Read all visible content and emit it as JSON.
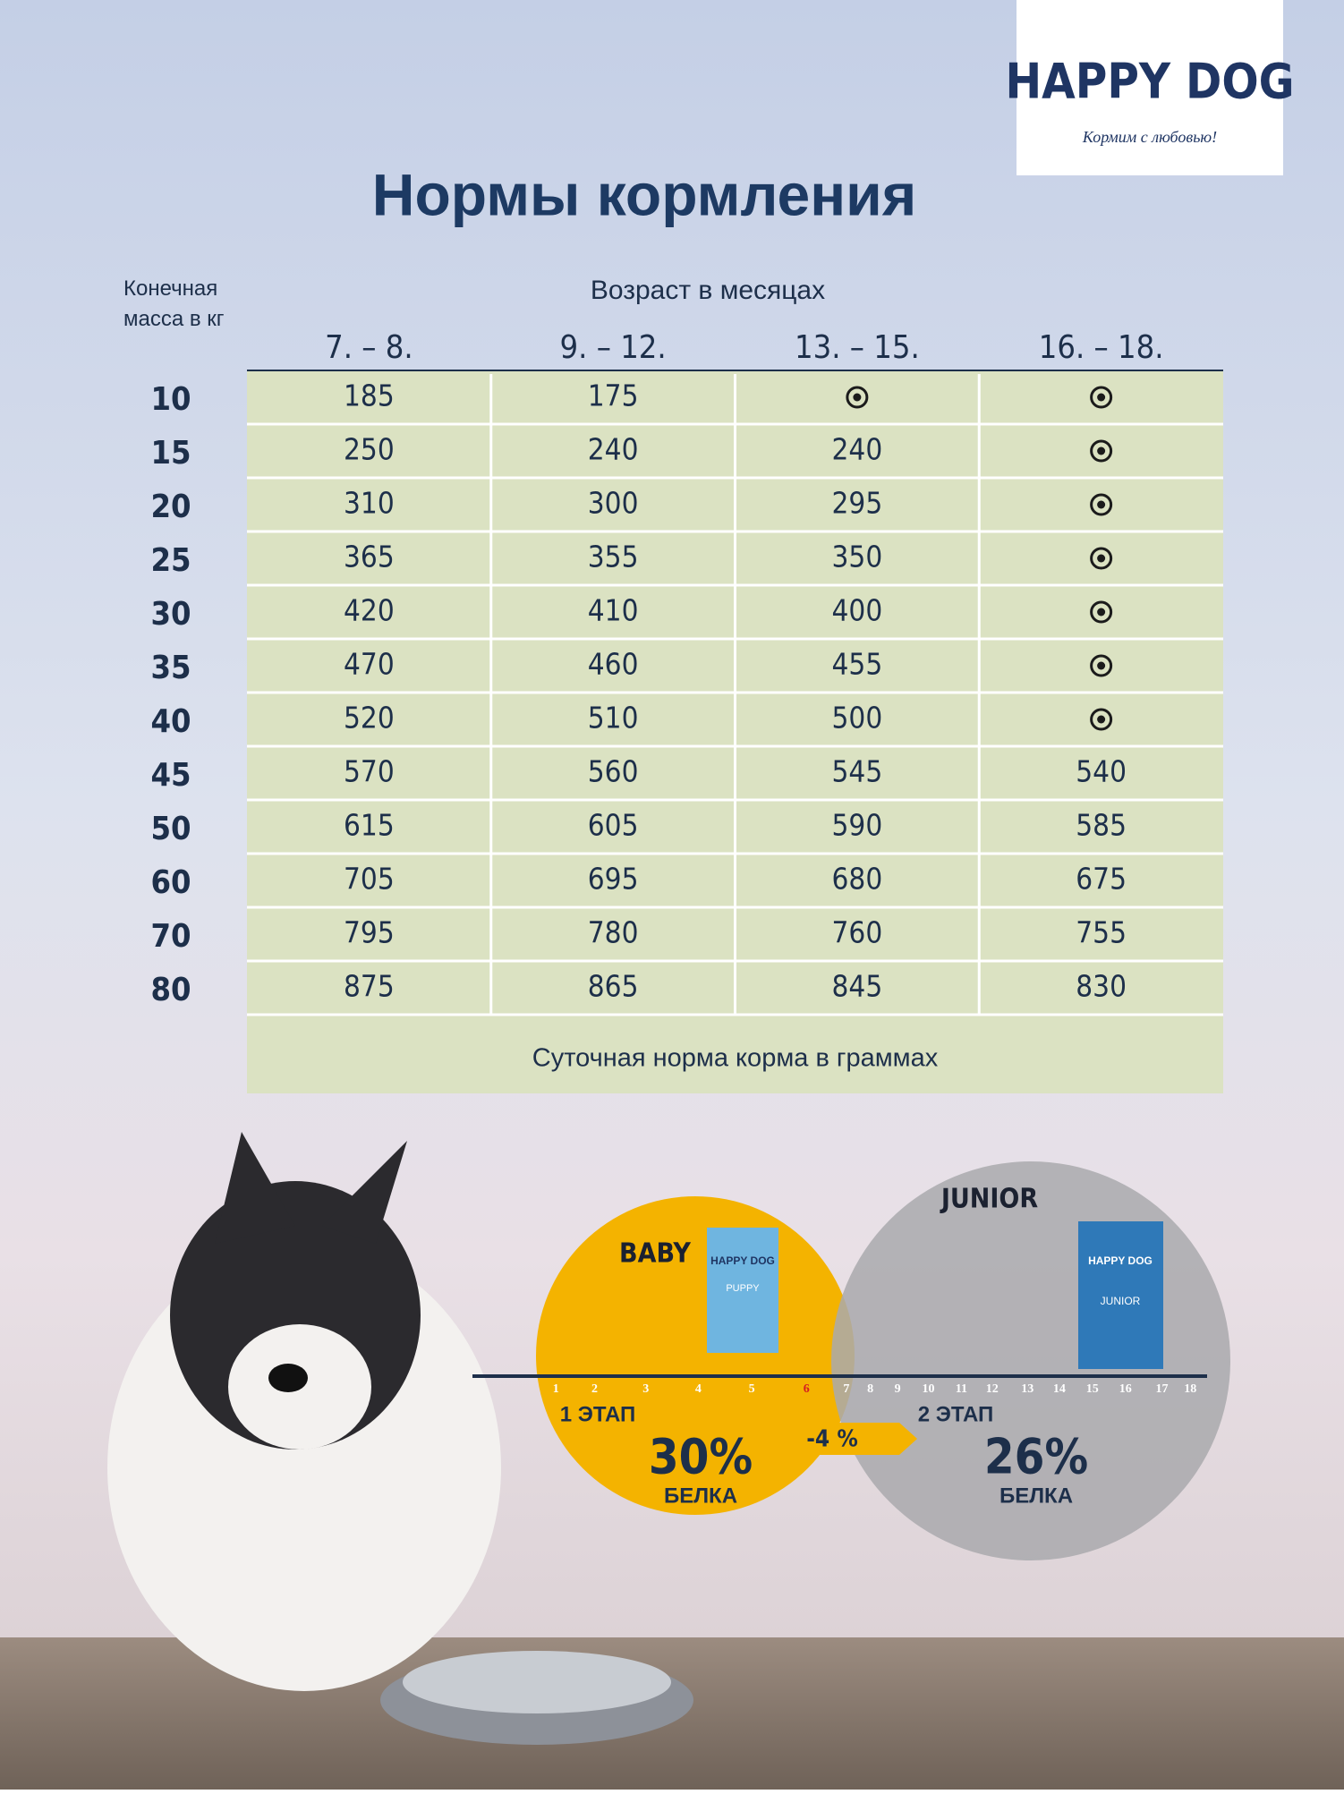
{
  "header": {
    "brand": "HAPPY DOG",
    "slogan": "Кормим с любовью!",
    "title": "Нормы кормления"
  },
  "table": {
    "row_label": "Конечная масса в кг",
    "group_label": "Возраст в месяцах",
    "columns": [
      "7. – 8.",
      "9. – 12.",
      "13. – 15.",
      "16. – 18."
    ],
    "rows": [
      [
        10,
        185,
        175,
        null,
        null
      ],
      [
        15,
        250,
        240,
        240,
        null
      ],
      [
        20,
        310,
        300,
        295,
        null
      ],
      [
        25,
        365,
        355,
        350,
        null
      ],
      [
        30,
        420,
        410,
        400,
        null
      ],
      [
        35,
        470,
        460,
        455,
        null
      ],
      [
        40,
        520,
        510,
        500,
        null
      ],
      [
        45,
        570,
        560,
        545,
        540
      ],
      [
        50,
        615,
        605,
        590,
        585
      ],
      [
        60,
        705,
        695,
        680,
        675
      ],
      [
        70,
        795,
        780,
        760,
        755
      ],
      [
        80,
        875,
        865,
        845,
        830
      ]
    ],
    "footer": "Суточная норма корма в граммах"
  },
  "stages": {
    "baby": {
      "name": "BABY",
      "pack_brand": "HAPPY DOG",
      "pack_name": "PUPPY",
      "stage": "1 ЭТАП",
      "protein": "30%",
      "protein_label": "БЕЛКА"
    },
    "junior": {
      "name": "JUNIOR",
      "pack_brand": "HAPPY DOG",
      "pack_name": "JUNIOR",
      "stage": "2 ЭТАП",
      "protein": "26%",
      "protein_label": "БЕЛКА"
    },
    "change": "-4 %",
    "months": [
      1,
      2,
      3,
      4,
      5,
      6,
      7,
      8,
      9,
      10,
      11,
      12,
      13,
      14,
      15,
      16,
      17,
      18
    ]
  }
}
